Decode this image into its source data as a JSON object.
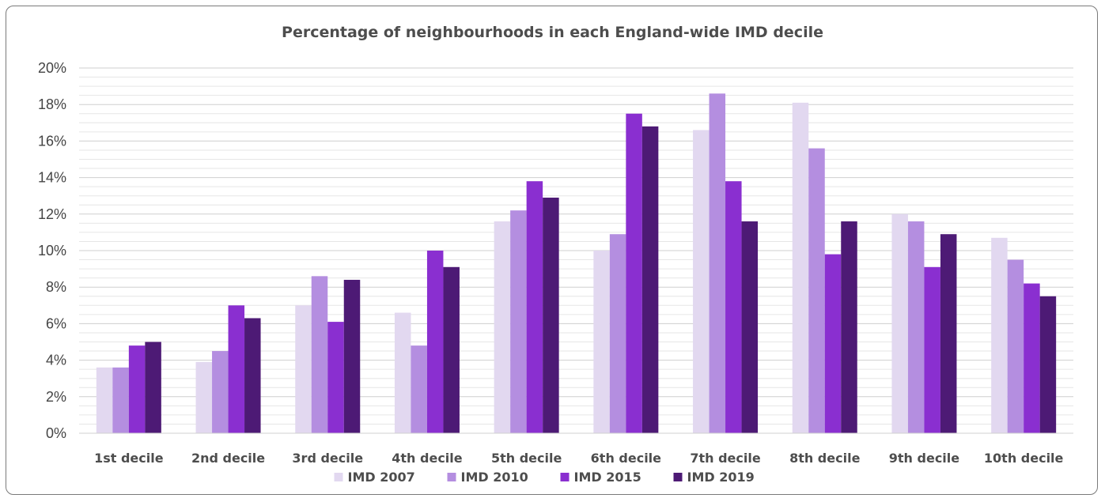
{
  "chart_data": {
    "type": "bar",
    "title": "Percentage of neighbourhoods in each England-wide IMD decile",
    "categories": [
      "1st decile",
      "2nd decile",
      "3rd decile",
      "4th decile",
      "5th decile",
      "6th decile",
      "7th decile",
      "8th decile",
      "9th decile",
      "10th decile"
    ],
    "series": [
      {
        "name": "IMD 2007",
        "color": "#e2d8f0",
        "values": [
          3.6,
          3.9,
          7.0,
          6.6,
          11.6,
          10.0,
          16.6,
          18.1,
          12.0,
          10.7
        ]
      },
      {
        "name": "IMD 2010",
        "color": "#b48ee0",
        "values": [
          3.6,
          4.5,
          8.6,
          4.8,
          12.2,
          10.9,
          18.6,
          15.6,
          11.6,
          9.5
        ]
      },
      {
        "name": "IMD 2015",
        "color": "#8a2fd0",
        "values": [
          4.8,
          7.0,
          6.1,
          10.0,
          13.8,
          17.5,
          13.8,
          9.8,
          9.1,
          8.2
        ]
      },
      {
        "name": "IMD 2019",
        "color": "#4d1a75",
        "values": [
          5.0,
          6.3,
          8.4,
          9.1,
          12.9,
          16.8,
          11.6,
          11.6,
          10.9,
          7.5
        ]
      }
    ],
    "ylim": [
      0,
      20
    ],
    "yticks": [
      "0%",
      "2%",
      "4%",
      "6%",
      "8%",
      "10%",
      "12%",
      "14%",
      "16%",
      "18%",
      "20%"
    ],
    "ystep": 2,
    "grid": true,
    "legend": "bottom-center"
  }
}
